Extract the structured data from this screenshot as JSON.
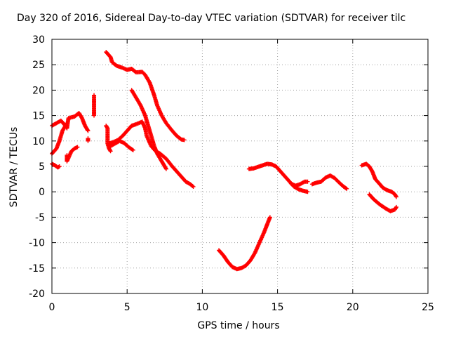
{
  "chart_data": {
    "type": "scatter",
    "title": "Day 320 of 2016, Sidereal Day-to-day VTEC variation (SDTVAR) for receiver tilc",
    "xlabel": "GPS time / hours",
    "ylabel": "SDTVAR / TECUs",
    "xlim": [
      0,
      25
    ],
    "ylim": [
      -20,
      30
    ],
    "xticks": [
      "0",
      "5",
      "10",
      "15",
      "20",
      "25"
    ],
    "yticks": [
      "-20",
      "-15",
      "-10",
      "-5",
      "0",
      "5",
      "10",
      "15",
      "20",
      "25",
      "30"
    ],
    "grid": true,
    "marker": "+",
    "color": "#ff0000",
    "series": [
      {
        "name": "s1",
        "points": [
          [
            0,
            13
          ],
          [
            0.3,
            13.5
          ],
          [
            0.6,
            14
          ],
          [
            0.9,
            13
          ],
          [
            1.0,
            12.5
          ],
          [
            1.1,
            14.5
          ],
          [
            1.5,
            14.8
          ],
          [
            1.8,
            15.5
          ],
          [
            2.0,
            14.5
          ],
          [
            2.2,
            13
          ],
          [
            2.4,
            12
          ]
        ]
      },
      {
        "name": "s2",
        "points": [
          [
            0,
            7.5
          ],
          [
            0.3,
            8.5
          ],
          [
            0.5,
            10
          ],
          [
            0.7,
            12
          ],
          [
            0.9,
            13
          ],
          [
            1.0,
            13.5
          ]
        ]
      },
      {
        "name": "s3",
        "points": [
          [
            0,
            5.5
          ],
          [
            0.2,
            5.2
          ],
          [
            0.4,
            4.8
          ],
          [
            0.5,
            5
          ]
        ]
      },
      {
        "name": "s4",
        "points": [
          [
            1.0,
            7.2
          ],
          [
            1.0,
            6.5
          ],
          [
            1.0,
            6.0
          ],
          [
            1.3,
            8.0
          ],
          [
            1.5,
            8.5
          ],
          [
            1.7,
            8.8
          ]
        ]
      },
      {
        "name": "s5",
        "points": [
          [
            2.4,
            10.5
          ],
          [
            2.4,
            10
          ],
          [
            2.8,
            19
          ],
          [
            2.8,
            18
          ],
          [
            2.8,
            16
          ],
          [
            2.8,
            15
          ]
        ]
      },
      {
        "name": "s6",
        "points": [
          [
            3.6,
            13
          ],
          [
            3.7,
            12.5
          ],
          [
            3.7,
            11.5
          ],
          [
            3.7,
            10.5
          ],
          [
            3.7,
            9.5
          ],
          [
            3.8,
            8.5
          ],
          [
            3.9,
            8
          ]
        ]
      },
      {
        "name": "s7",
        "points": [
          [
            3.6,
            27.5
          ],
          [
            3.9,
            26.5
          ],
          [
            4.0,
            25.5
          ],
          [
            4.3,
            24.8
          ],
          [
            4.6,
            24.5
          ],
          [
            5.0,
            24
          ],
          [
            5.3,
            24.2
          ],
          [
            5.6,
            23.5
          ],
          [
            6.0,
            23.6
          ],
          [
            6.2,
            23
          ],
          [
            6.5,
            21.5
          ],
          [
            6.8,
            19
          ],
          [
            7.0,
            17
          ],
          [
            7.3,
            15
          ],
          [
            7.6,
            13.5
          ],
          [
            8.0,
            12
          ],
          [
            8.3,
            11
          ],
          [
            8.6,
            10.3
          ],
          [
            8.8,
            10.2
          ]
        ]
      },
      {
        "name": "s8",
        "points": [
          [
            5.3,
            20
          ],
          [
            5.6,
            18.5
          ],
          [
            5.9,
            17
          ],
          [
            6.2,
            15
          ],
          [
            6.4,
            13
          ],
          [
            6.6,
            11
          ],
          [
            6.8,
            9
          ],
          [
            7.0,
            7.5
          ],
          [
            7.3,
            6
          ],
          [
            7.5,
            5
          ],
          [
            7.6,
            4.5
          ]
        ]
      },
      {
        "name": "s9",
        "points": [
          [
            3.8,
            9.5
          ],
          [
            4.1,
            9.8
          ],
          [
            4.4,
            10.2
          ],
          [
            4.7,
            11
          ],
          [
            5.0,
            12
          ],
          [
            5.3,
            13
          ],
          [
            5.6,
            13.3
          ],
          [
            6.0,
            13.8
          ],
          [
            6.2,
            12.5
          ],
          [
            6.3,
            11
          ],
          [
            6.6,
            9
          ],
          [
            6.9,
            8
          ],
          [
            7.2,
            7.5
          ],
          [
            7.6,
            6.5
          ],
          [
            8.0,
            5
          ],
          [
            8.3,
            4
          ],
          [
            8.6,
            3
          ],
          [
            8.9,
            2
          ],
          [
            9.2,
            1.5
          ],
          [
            9.4,
            1
          ]
        ]
      },
      {
        "name": "s10",
        "points": [
          [
            3.9,
            9
          ],
          [
            4.2,
            9.5
          ],
          [
            4.5,
            10
          ],
          [
            4.8,
            9.6
          ],
          [
            5.1,
            8.8
          ],
          [
            5.4,
            8.2
          ]
        ]
      },
      {
        "name": "s11",
        "points": [
          [
            11.1,
            -11.5
          ],
          [
            11.4,
            -12.5
          ],
          [
            11.7,
            -13.8
          ],
          [
            12.0,
            -14.8
          ],
          [
            12.3,
            -15.2
          ],
          [
            12.6,
            -15
          ],
          [
            12.9,
            -14.5
          ],
          [
            13.2,
            -13.5
          ],
          [
            13.5,
            -12
          ],
          [
            13.8,
            -10
          ],
          [
            14.1,
            -8
          ],
          [
            14.3,
            -6.5
          ],
          [
            14.5,
            -5
          ]
        ]
      },
      {
        "name": "s12",
        "points": [
          [
            13.1,
            4.5
          ],
          [
            13.4,
            4.6
          ],
          [
            13.7,
            4.9
          ],
          [
            14.0,
            5.2
          ],
          [
            14.3,
            5.5
          ],
          [
            14.6,
            5.4
          ],
          [
            14.9,
            5
          ],
          [
            15.2,
            4
          ],
          [
            15.5,
            3
          ],
          [
            15.8,
            2
          ],
          [
            16.1,
            1
          ],
          [
            16.4,
            0.5
          ],
          [
            16.7,
            0.2
          ],
          [
            17.0,
            0
          ]
        ]
      },
      {
        "name": "s13",
        "points": [
          [
            15.9,
            1.6
          ],
          [
            16.2,
            1.2
          ],
          [
            16.5,
            1.5
          ],
          [
            16.8,
            2.0
          ],
          [
            17.0,
            2.0
          ]
        ]
      },
      {
        "name": "s14",
        "points": [
          [
            17.3,
            1.5
          ],
          [
            17.6,
            1.8
          ],
          [
            17.9,
            2.0
          ],
          [
            18.2,
            2.8
          ],
          [
            18.5,
            3.2
          ],
          [
            18.8,
            2.7
          ],
          [
            19.1,
            1.8
          ],
          [
            19.4,
            1
          ],
          [
            19.6,
            0.6
          ]
        ]
      },
      {
        "name": "s15",
        "points": [
          [
            20.6,
            5.2
          ],
          [
            20.9,
            5.5
          ],
          [
            21.1,
            5
          ],
          [
            21.3,
            4
          ],
          [
            21.5,
            2.5
          ],
          [
            21.8,
            1.5
          ],
          [
            22.0,
            0.8
          ],
          [
            22.3,
            0.3
          ],
          [
            22.6,
            0
          ],
          [
            22.8,
            -0.5
          ],
          [
            22.9,
            -1
          ]
        ]
      },
      {
        "name": "s16",
        "points": [
          [
            21.1,
            -0.5
          ],
          [
            21.4,
            -1.5
          ],
          [
            21.8,
            -2.5
          ],
          [
            22.2,
            -3.3
          ],
          [
            22.5,
            -3.8
          ],
          [
            22.8,
            -3.5
          ],
          [
            22.9,
            -3
          ]
        ]
      }
    ]
  }
}
